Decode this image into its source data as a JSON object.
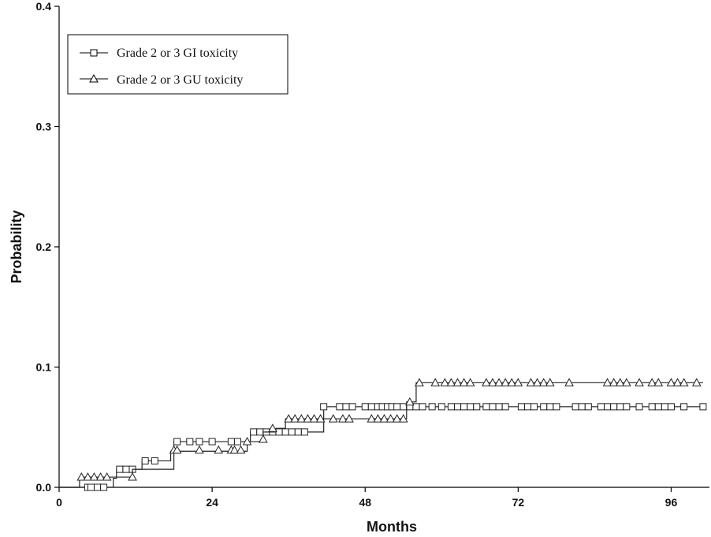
{
  "chart_data": {
    "type": "line",
    "xlabel": "Months",
    "ylabel": "Probability",
    "xlim": [
      0,
      102
    ],
    "ylim": [
      0,
      0.4
    ],
    "x_ticks": [
      0,
      24,
      48,
      72,
      96
    ],
    "x_tick_labels": [
      "0",
      "24",
      "48",
      "72",
      "96"
    ],
    "y_ticks": [
      0,
      0.1,
      0.2,
      0.3,
      0.4
    ],
    "y_tick_labels": [
      "0.0",
      "0.1",
      "0.2",
      "0.3",
      "0.4"
    ],
    "legend_position": "top-left",
    "series": [
      {
        "name": "Grade 2 or 3 GI toxicity",
        "marker": "square",
        "steps": [
          [
            0,
            0
          ],
          [
            8,
            0
          ],
          [
            8.5,
            0.0075
          ],
          [
            9,
            0.015
          ],
          [
            12,
            0.015
          ],
          [
            13,
            0.022
          ],
          [
            16,
            0.022
          ],
          [
            17.5,
            0.03
          ],
          [
            18,
            0.038
          ],
          [
            29,
            0.038
          ],
          [
            30,
            0.046
          ],
          [
            41,
            0.046
          ],
          [
            41.5,
            0.067
          ],
          [
            101,
            0.067
          ]
        ],
        "censored": [
          [
            4.5,
            0
          ],
          [
            5,
            0
          ],
          [
            6,
            0
          ],
          [
            7,
            0
          ],
          [
            9.5,
            0.015
          ],
          [
            10.5,
            0.015
          ],
          [
            11.5,
            0.015
          ],
          [
            13.5,
            0.022
          ],
          [
            15,
            0.022
          ],
          [
            18.5,
            0.038
          ],
          [
            20.5,
            0.038
          ],
          [
            22,
            0.038
          ],
          [
            24,
            0.038
          ],
          [
            27,
            0.038
          ],
          [
            28,
            0.038
          ],
          [
            30.5,
            0.046
          ],
          [
            31.5,
            0.046
          ],
          [
            32.5,
            0.046
          ],
          [
            33.5,
            0.046
          ],
          [
            34.5,
            0.046
          ],
          [
            35.5,
            0.046
          ],
          [
            36.5,
            0.046
          ],
          [
            37.5,
            0.046
          ],
          [
            38.5,
            0.046
          ],
          [
            41.5,
            0.067
          ],
          [
            44,
            0.067
          ],
          [
            45,
            0.067
          ],
          [
            46,
            0.067
          ],
          [
            48,
            0.067
          ],
          [
            49,
            0.067
          ],
          [
            50,
            0.067
          ],
          [
            50.7,
            0.067
          ],
          [
            51.5,
            0.067
          ],
          [
            52.2,
            0.067
          ],
          [
            53,
            0.067
          ],
          [
            54,
            0.067
          ],
          [
            55,
            0.067
          ],
          [
            56,
            0.067
          ],
          [
            57,
            0.067
          ],
          [
            58.5,
            0.067
          ],
          [
            60,
            0.067
          ],
          [
            61.5,
            0.067
          ],
          [
            62.5,
            0.067
          ],
          [
            63.5,
            0.067
          ],
          [
            64.5,
            0.067
          ],
          [
            65.5,
            0.067
          ],
          [
            67,
            0.067
          ],
          [
            68,
            0.067
          ],
          [
            69,
            0.067
          ],
          [
            70,
            0.067
          ],
          [
            72.5,
            0.067
          ],
          [
            73.5,
            0.067
          ],
          [
            74.5,
            0.067
          ],
          [
            76,
            0.067
          ],
          [
            77,
            0.067
          ],
          [
            78,
            0.067
          ],
          [
            81,
            0.067
          ],
          [
            82,
            0.067
          ],
          [
            83,
            0.067
          ],
          [
            85,
            0.067
          ],
          [
            86,
            0.067
          ],
          [
            87,
            0.067
          ],
          [
            88,
            0.067
          ],
          [
            89,
            0.067
          ],
          [
            91,
            0.067
          ],
          [
            93,
            0.067
          ],
          [
            94,
            0.067
          ],
          [
            95,
            0.067
          ],
          [
            96,
            0.067
          ],
          [
            98,
            0.067
          ],
          [
            101,
            0.067
          ]
        ]
      },
      {
        "name": "Grade 2 or 3 GU toxicity",
        "marker": "triangle",
        "steps": [
          [
            0,
            0
          ],
          [
            3,
            0
          ],
          [
            3.2,
            0.0085
          ],
          [
            11,
            0.0085
          ],
          [
            11.5,
            0.015
          ],
          [
            17.5,
            0.015
          ],
          [
            18,
            0.03
          ],
          [
            29,
            0.03
          ],
          [
            29.5,
            0.038
          ],
          [
            31.5,
            0.038
          ],
          [
            32,
            0.046
          ],
          [
            33.5,
            0.046
          ],
          [
            34,
            0.049
          ],
          [
            35,
            0.049
          ],
          [
            35.5,
            0.057
          ],
          [
            54,
            0.057
          ],
          [
            54.5,
            0.071
          ],
          [
            55.5,
            0.071
          ],
          [
            56,
            0.087
          ],
          [
            101,
            0.087
          ]
        ],
        "censored": [
          [
            3.5,
            0.0085
          ],
          [
            4.5,
            0.0085
          ],
          [
            5.5,
            0.0085
          ],
          [
            6.5,
            0.0085
          ],
          [
            7.5,
            0.0085
          ],
          [
            11.5,
            0.0085
          ],
          [
            18,
            0.031
          ],
          [
            18.5,
            0.031
          ],
          [
            22,
            0.031
          ],
          [
            25,
            0.031
          ],
          [
            27,
            0.031
          ],
          [
            27.5,
            0.031
          ],
          [
            28.5,
            0.031
          ],
          [
            29.5,
            0.038
          ],
          [
            32,
            0.04
          ],
          [
            33.5,
            0.049
          ],
          [
            36,
            0.057
          ],
          [
            37,
            0.057
          ],
          [
            38,
            0.057
          ],
          [
            39,
            0.057
          ],
          [
            40,
            0.057
          ],
          [
            41,
            0.057
          ],
          [
            43,
            0.057
          ],
          [
            44.5,
            0.057
          ],
          [
            45.5,
            0.057
          ],
          [
            49,
            0.057
          ],
          [
            50,
            0.057
          ],
          [
            51,
            0.057
          ],
          [
            52,
            0.057
          ],
          [
            53,
            0.057
          ],
          [
            54,
            0.057
          ],
          [
            55,
            0.071
          ],
          [
            56.5,
            0.087
          ],
          [
            59,
            0.087
          ],
          [
            60.5,
            0.087
          ],
          [
            61.5,
            0.087
          ],
          [
            62.5,
            0.087
          ],
          [
            63.5,
            0.087
          ],
          [
            64.5,
            0.087
          ],
          [
            67,
            0.087
          ],
          [
            68,
            0.087
          ],
          [
            69,
            0.087
          ],
          [
            70,
            0.087
          ],
          [
            71,
            0.087
          ],
          [
            72,
            0.087
          ],
          [
            74,
            0.087
          ],
          [
            75,
            0.087
          ],
          [
            76,
            0.087
          ],
          [
            77,
            0.087
          ],
          [
            80,
            0.087
          ],
          [
            86,
            0.087
          ],
          [
            87,
            0.087
          ],
          [
            88,
            0.087
          ],
          [
            89,
            0.087
          ],
          [
            91,
            0.087
          ],
          [
            93,
            0.087
          ],
          [
            94,
            0.087
          ],
          [
            96,
            0.087
          ],
          [
            97,
            0.087
          ],
          [
            98,
            0.087
          ],
          [
            100,
            0.087
          ]
        ]
      }
    ]
  }
}
